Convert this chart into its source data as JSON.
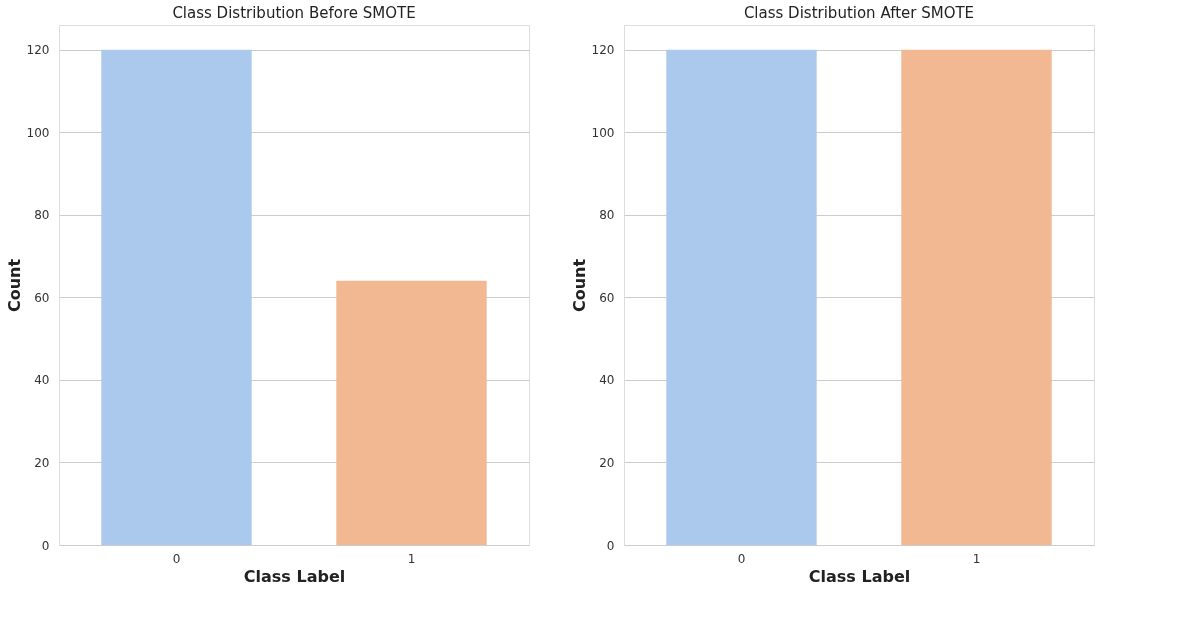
{
  "chart_data": [
    {
      "type": "bar",
      "title": "Class Distribution Before SMOTE",
      "xlabel": "Class Label",
      "ylabel": "Count",
      "categories": [
        "0",
        "1"
      ],
      "values": [
        120,
        64
      ],
      "colors": [
        "#abc9ec",
        "#f1b892"
      ],
      "ylim": [
        0,
        126
      ],
      "yticks": [
        0,
        20,
        40,
        60,
        80,
        100,
        120
      ],
      "grid": "y"
    },
    {
      "type": "bar",
      "title": "Class Distribution After SMOTE",
      "xlabel": "Class Label",
      "ylabel": "Count",
      "categories": [
        "0",
        "1"
      ],
      "values": [
        120,
        120
      ],
      "colors": [
        "#abc9ec",
        "#f1b892"
      ],
      "ylim": [
        0,
        126
      ],
      "yticks": [
        0,
        20,
        40,
        60,
        80,
        100,
        120
      ],
      "grid": "y"
    }
  ]
}
